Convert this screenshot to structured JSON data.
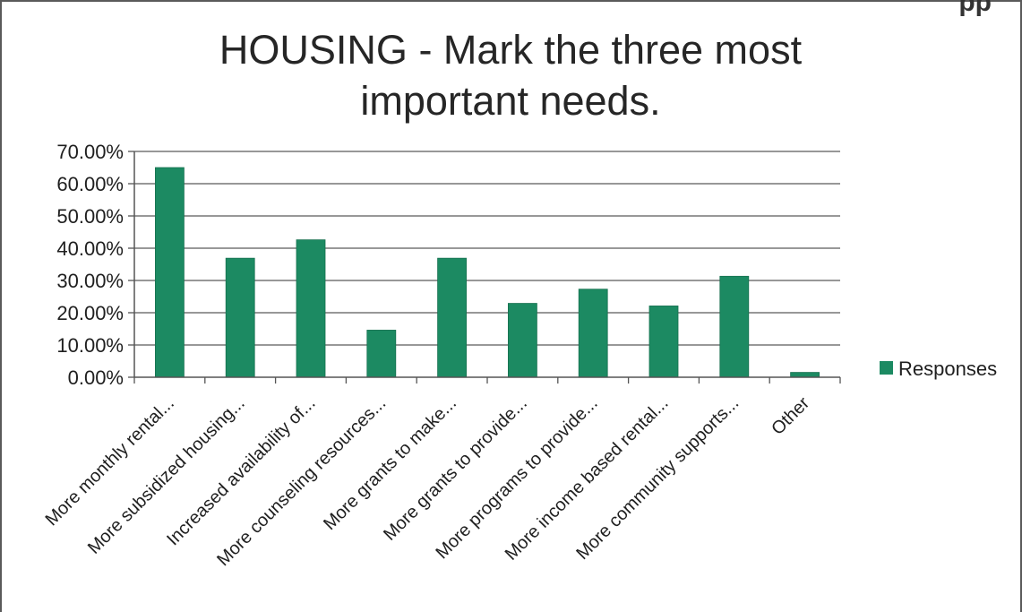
{
  "colors": {
    "bar": "#1c8a62",
    "axis": "#555555",
    "grid": "#5a5a5a",
    "text": "#1f1f1f"
  },
  "scan_mark": "pp",
  "chart_data": {
    "type": "bar",
    "title_lines": [
      "HOUSING - Mark the three most",
      "important needs."
    ],
    "title": "HOUSING - Mark the three most important needs.",
    "categories": [
      "More monthly rental...",
      "More subsidized housing...",
      "Increased availability of...",
      "More counseling resources...",
      "More grants to make...",
      "More grants to provide...",
      "More programs to provide...",
      "More income based rental...",
      "More community supports...",
      "Other"
    ],
    "series": [
      {
        "name": "Responses",
        "values": [
          65.0,
          36.9,
          42.6,
          14.6,
          36.9,
          22.9,
          27.3,
          22.1,
          31.3,
          1.5
        ]
      }
    ],
    "yticks": [
      "0.00%",
      "10.00%",
      "20.00%",
      "30.00%",
      "40.00%",
      "50.00%",
      "60.00%",
      "70.00%"
    ],
    "ylim": [
      0,
      70
    ],
    "grid": true,
    "legend_position": "right"
  }
}
